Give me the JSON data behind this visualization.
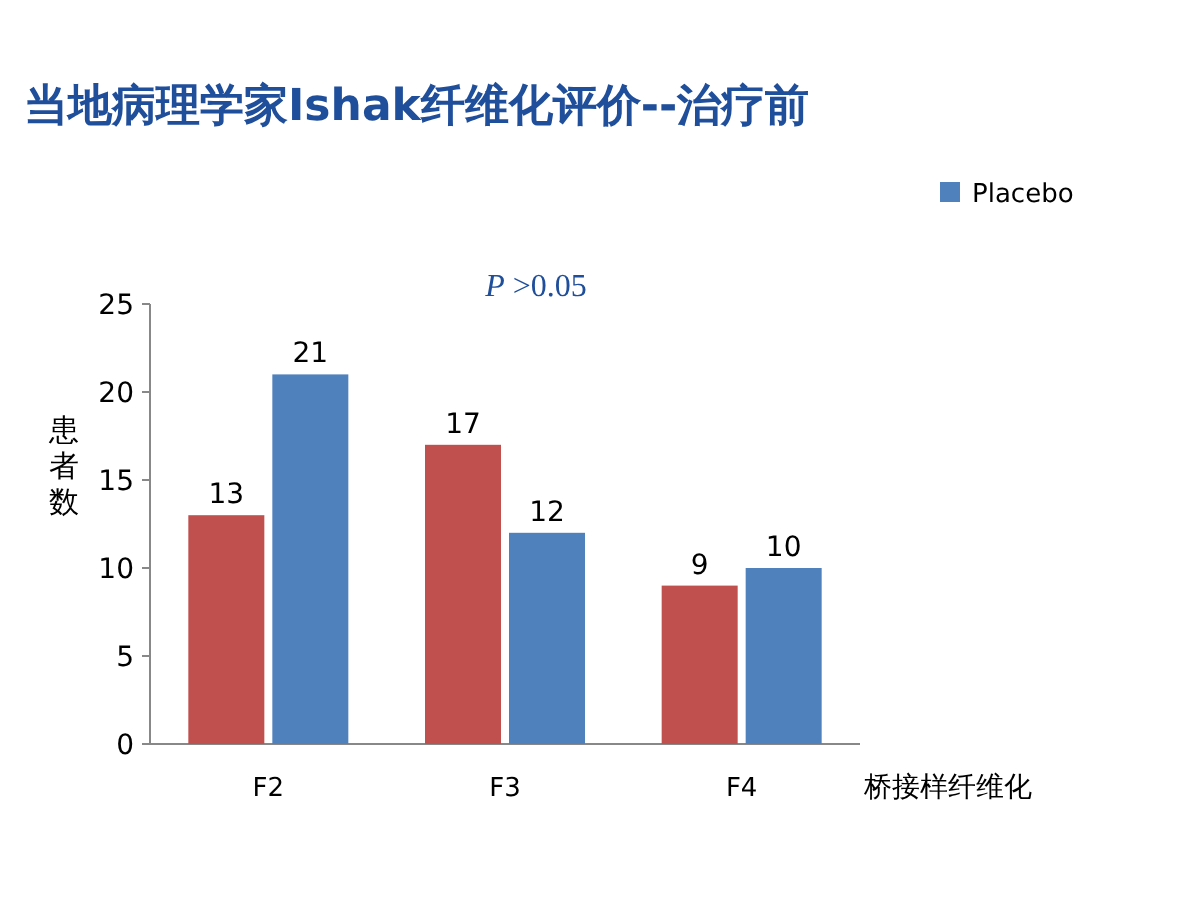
{
  "chart_data": {
    "type": "bar",
    "title": "当地病理学家Ishak纤维化评价--治疗前",
    "ylabel": "患者数",
    "xlabel": "桥接样纤维化",
    "categories": [
      "F2",
      "F3",
      "F4"
    ],
    "series": [
      {
        "color": "#c0504d",
        "values": [
          13,
          17,
          9
        ]
      },
      {
        "name": "Placebo",
        "color": "#4f81bd",
        "values": [
          21,
          12,
          10
        ]
      }
    ],
    "ylim": [
      0,
      25
    ],
    "yticks": [
      0,
      5,
      10,
      15,
      20,
      25
    ],
    "data_labels": true,
    "legend": "top right",
    "grid": false,
    "annotations": [
      "P >0.05"
    ]
  }
}
